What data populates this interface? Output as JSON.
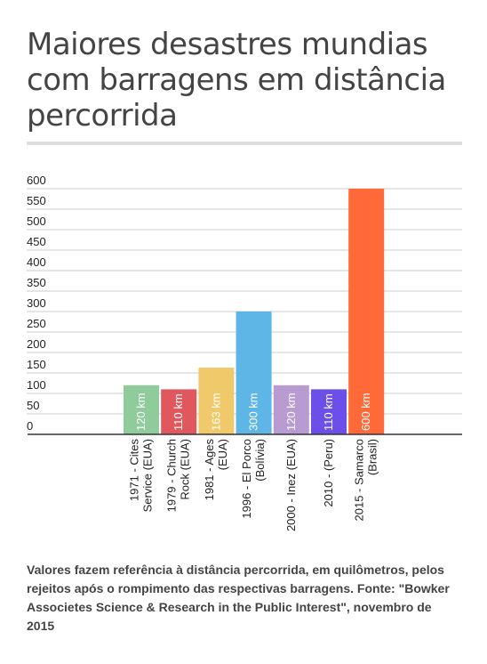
{
  "title": "Maiores desastres mundias com barragens em distância percorrida",
  "caption": "Valores fazem referência à distância percorrida, em quilômetros, pelos rejeitos após o rompimento das respectivas barragens. Fonte: \"Bowker Associetes Science & Research in the Public Interest\", novembro de 2015",
  "chart_data": {
    "type": "bar",
    "categories": [
      [
        "1971 - Cites",
        "Service (EUA)"
      ],
      [
        "1979 - Church",
        "Rock (EUA)"
      ],
      [
        "1981 - Ages",
        "(EUA)"
      ],
      [
        "1996 - El Porco",
        "(Bolívia)"
      ],
      [
        "2000 - Inez (EUA)"
      ],
      [
        "2010 - (Peru)"
      ],
      [
        "2015 - Samarco",
        "(Brasil)"
      ]
    ],
    "values": [
      120,
      110,
      163,
      300,
      120,
      110,
      600
    ],
    "data_labels": [
      "120 km",
      "110 km",
      "163 km",
      "300 km",
      "120 km",
      "110 km",
      "600 km"
    ],
    "colors": [
      "#8fcb9b",
      "#e0585e",
      "#f0c96b",
      "#5eb6e6",
      "#b79bd1",
      "#6c4ee8",
      "#ff6a38"
    ],
    "yticks": [
      "0",
      "50",
      "100",
      "150",
      "200",
      "250",
      "300",
      "350",
      "400",
      "450",
      "500",
      "550",
      "600"
    ],
    "ylim": [
      0,
      600
    ],
    "grid": true,
    "legend": "none"
  }
}
